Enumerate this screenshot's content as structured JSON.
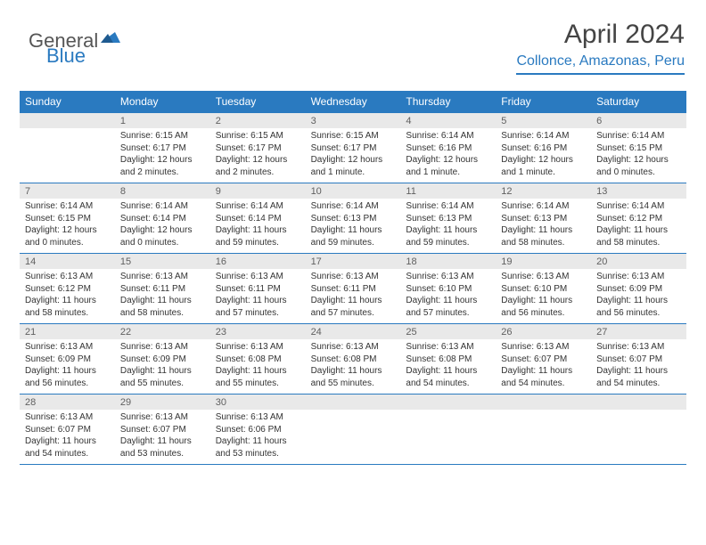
{
  "logo": {
    "text1": "General",
    "text2": "Blue"
  },
  "title": "April 2024",
  "location": "Collonce, Amazonas, Peru",
  "colors": {
    "header_bg": "#2a7ac0",
    "header_text": "#ffffff",
    "daynum_bg": "#e9e9e9",
    "daynum_text": "#606060",
    "body_text": "#333333",
    "rule": "#2a7ac0"
  },
  "day_labels": [
    "Sunday",
    "Monday",
    "Tuesday",
    "Wednesday",
    "Thursday",
    "Friday",
    "Saturday"
  ],
  "weeks": [
    [
      {
        "day": "",
        "lines": []
      },
      {
        "day": "1",
        "lines": [
          "Sunrise: 6:15 AM",
          "Sunset: 6:17 PM",
          "Daylight: 12 hours and 2 minutes."
        ]
      },
      {
        "day": "2",
        "lines": [
          "Sunrise: 6:15 AM",
          "Sunset: 6:17 PM",
          "Daylight: 12 hours and 2 minutes."
        ]
      },
      {
        "day": "3",
        "lines": [
          "Sunrise: 6:15 AM",
          "Sunset: 6:17 PM",
          "Daylight: 12 hours and 1 minute."
        ]
      },
      {
        "day": "4",
        "lines": [
          "Sunrise: 6:14 AM",
          "Sunset: 6:16 PM",
          "Daylight: 12 hours and 1 minute."
        ]
      },
      {
        "day": "5",
        "lines": [
          "Sunrise: 6:14 AM",
          "Sunset: 6:16 PM",
          "Daylight: 12 hours and 1 minute."
        ]
      },
      {
        "day": "6",
        "lines": [
          "Sunrise: 6:14 AM",
          "Sunset: 6:15 PM",
          "Daylight: 12 hours and 0 minutes."
        ]
      }
    ],
    [
      {
        "day": "7",
        "lines": [
          "Sunrise: 6:14 AM",
          "Sunset: 6:15 PM",
          "Daylight: 12 hours and 0 minutes."
        ]
      },
      {
        "day": "8",
        "lines": [
          "Sunrise: 6:14 AM",
          "Sunset: 6:14 PM",
          "Daylight: 12 hours and 0 minutes."
        ]
      },
      {
        "day": "9",
        "lines": [
          "Sunrise: 6:14 AM",
          "Sunset: 6:14 PM",
          "Daylight: 11 hours and 59 minutes."
        ]
      },
      {
        "day": "10",
        "lines": [
          "Sunrise: 6:14 AM",
          "Sunset: 6:13 PM",
          "Daylight: 11 hours and 59 minutes."
        ]
      },
      {
        "day": "11",
        "lines": [
          "Sunrise: 6:14 AM",
          "Sunset: 6:13 PM",
          "Daylight: 11 hours and 59 minutes."
        ]
      },
      {
        "day": "12",
        "lines": [
          "Sunrise: 6:14 AM",
          "Sunset: 6:13 PM",
          "Daylight: 11 hours and 58 minutes."
        ]
      },
      {
        "day": "13",
        "lines": [
          "Sunrise: 6:14 AM",
          "Sunset: 6:12 PM",
          "Daylight: 11 hours and 58 minutes."
        ]
      }
    ],
    [
      {
        "day": "14",
        "lines": [
          "Sunrise: 6:13 AM",
          "Sunset: 6:12 PM",
          "Daylight: 11 hours and 58 minutes."
        ]
      },
      {
        "day": "15",
        "lines": [
          "Sunrise: 6:13 AM",
          "Sunset: 6:11 PM",
          "Daylight: 11 hours and 58 minutes."
        ]
      },
      {
        "day": "16",
        "lines": [
          "Sunrise: 6:13 AM",
          "Sunset: 6:11 PM",
          "Daylight: 11 hours and 57 minutes."
        ]
      },
      {
        "day": "17",
        "lines": [
          "Sunrise: 6:13 AM",
          "Sunset: 6:11 PM",
          "Daylight: 11 hours and 57 minutes."
        ]
      },
      {
        "day": "18",
        "lines": [
          "Sunrise: 6:13 AM",
          "Sunset: 6:10 PM",
          "Daylight: 11 hours and 57 minutes."
        ]
      },
      {
        "day": "19",
        "lines": [
          "Sunrise: 6:13 AM",
          "Sunset: 6:10 PM",
          "Daylight: 11 hours and 56 minutes."
        ]
      },
      {
        "day": "20",
        "lines": [
          "Sunrise: 6:13 AM",
          "Sunset: 6:09 PM",
          "Daylight: 11 hours and 56 minutes."
        ]
      }
    ],
    [
      {
        "day": "21",
        "lines": [
          "Sunrise: 6:13 AM",
          "Sunset: 6:09 PM",
          "Daylight: 11 hours and 56 minutes."
        ]
      },
      {
        "day": "22",
        "lines": [
          "Sunrise: 6:13 AM",
          "Sunset: 6:09 PM",
          "Daylight: 11 hours and 55 minutes."
        ]
      },
      {
        "day": "23",
        "lines": [
          "Sunrise: 6:13 AM",
          "Sunset: 6:08 PM",
          "Daylight: 11 hours and 55 minutes."
        ]
      },
      {
        "day": "24",
        "lines": [
          "Sunrise: 6:13 AM",
          "Sunset: 6:08 PM",
          "Daylight: 11 hours and 55 minutes."
        ]
      },
      {
        "day": "25",
        "lines": [
          "Sunrise: 6:13 AM",
          "Sunset: 6:08 PM",
          "Daylight: 11 hours and 54 minutes."
        ]
      },
      {
        "day": "26",
        "lines": [
          "Sunrise: 6:13 AM",
          "Sunset: 6:07 PM",
          "Daylight: 11 hours and 54 minutes."
        ]
      },
      {
        "day": "27",
        "lines": [
          "Sunrise: 6:13 AM",
          "Sunset: 6:07 PM",
          "Daylight: 11 hours and 54 minutes."
        ]
      }
    ],
    [
      {
        "day": "28",
        "lines": [
          "Sunrise: 6:13 AM",
          "Sunset: 6:07 PM",
          "Daylight: 11 hours and 54 minutes."
        ]
      },
      {
        "day": "29",
        "lines": [
          "Sunrise: 6:13 AM",
          "Sunset: 6:07 PM",
          "Daylight: 11 hours and 53 minutes."
        ]
      },
      {
        "day": "30",
        "lines": [
          "Sunrise: 6:13 AM",
          "Sunset: 6:06 PM",
          "Daylight: 11 hours and 53 minutes."
        ]
      },
      {
        "day": "",
        "lines": []
      },
      {
        "day": "",
        "lines": []
      },
      {
        "day": "",
        "lines": []
      },
      {
        "day": "",
        "lines": []
      }
    ]
  ]
}
